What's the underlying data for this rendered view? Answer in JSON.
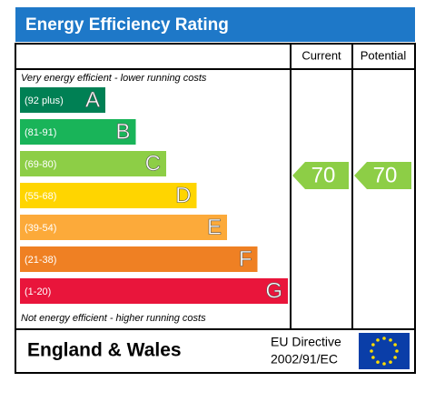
{
  "header": {
    "title": "Energy Efficiency Rating"
  },
  "columns": [
    "Current",
    "Potential"
  ],
  "top_note": "Very energy efficient - lower running costs",
  "bottom_note": "Not energy efficient - higher running costs",
  "bands": [
    {
      "range": "(92 plus)",
      "letter": "A",
      "color": "#008054"
    },
    {
      "range": "(81-91)",
      "letter": "B",
      "color": "#19b459"
    },
    {
      "range": "(69-80)",
      "letter": "C",
      "color": "#8dce46"
    },
    {
      "range": "(55-68)",
      "letter": "D",
      "color": "#ffd500"
    },
    {
      "range": "(39-54)",
      "letter": "E",
      "color": "#fcaa3a"
    },
    {
      "range": "(21-38)",
      "letter": "F",
      "color": "#ef8023"
    },
    {
      "range": "(1-20)",
      "letter": "G",
      "color": "#e9153b"
    }
  ],
  "current": {
    "value": 70,
    "color": "#8dce46"
  },
  "potential": {
    "value": 70,
    "color": "#8dce46"
  },
  "footer": {
    "region": "England & Wales",
    "directive": [
      "EU Directive",
      "2002/91/EC"
    ]
  }
}
